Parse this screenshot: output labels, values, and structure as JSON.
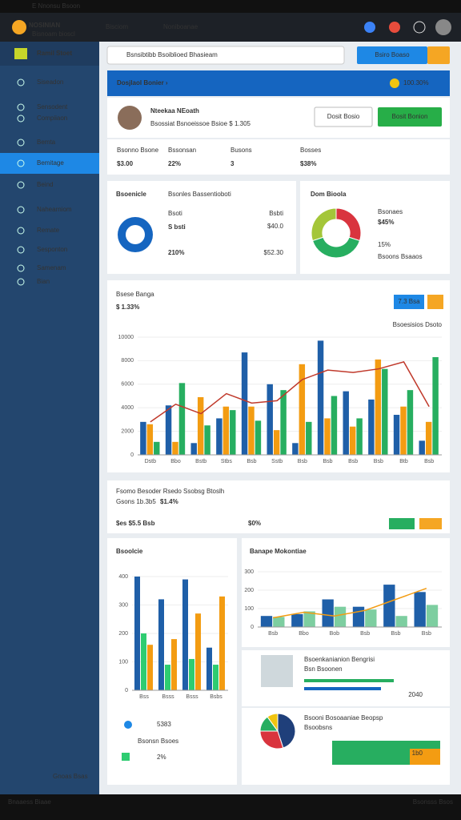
{
  "topbar": {
    "title": "E Nnonsu Bsoon"
  },
  "header": {
    "logo": "NOSINIAN",
    "tagline": "Bisnoam bioscl",
    "nav": [
      "Bisciom",
      "Noniboanae"
    ]
  },
  "sidebar": {
    "title": "Ramil Stoet",
    "items": [
      "Siseadon",
      "Sensodent",
      "Compiiaon",
      "Bemta",
      "Bemitage",
      "Beind",
      "Nahearniom",
      "Remate",
      "Sesponton",
      "Samenam",
      "Bian"
    ],
    "footer": "Gnoas Bsas"
  },
  "search": {
    "placeholder": "Bsnsibtibb Bsoiblioed Bhasieam",
    "button": "Bsiro Boaso"
  },
  "banner": {
    "title": "Dosjlaol Bonier ›",
    "value": "100.30%"
  },
  "profile": {
    "name": "Nteekaa NEoath",
    "subtitle": "Bsossiat Bsnoeissoe Bsioe $ 1.305",
    "button1": "Dosit Bosio",
    "button2": "Bosit Bonion"
  },
  "kpis": [
    {
      "label": "Bsonno Bsone",
      "value": "$3.00"
    },
    {
      "label": "Bssonsan",
      "value": "22%"
    },
    {
      "label": "Busons",
      "value": "3"
    },
    {
      "label": "Bosses",
      "value": "$38%"
    }
  ],
  "card1": {
    "title": "Bsoenicle",
    "subtitle": "Bsonles Bassentioboti",
    "label1": "Bsoti",
    "label2": "Bsbti",
    "value1": "S bsti",
    "value2": "$40.0",
    "value3": "210%",
    "value4": "$52.30"
  },
  "donut_card": {
    "label1": "$45%",
    "label2": "Bsonaes",
    "label3": "15%",
    "label4": "Bsoons Bsaaos"
  },
  "chart_extra": {
    "subtitle": "$ 1.33%",
    "button": "7.3 Bsa",
    "link": "Bsoesisios Dsoto"
  },
  "strip": {
    "title": "Fsomo Besoder Rsedo Ssobsg Btoslh",
    "sub": "Gsons 1b.3b5",
    "sub_value": "$1.4%",
    "left": "$es $5.5 Bsb",
    "right": "$0%"
  },
  "left_stats": {
    "value": "5383",
    "label": "Bsonsn Bsoes",
    "pct": "2%"
  },
  "list": [
    {
      "title": "Bsoenkanianion Bengrisi",
      "sub": "Bsn Bsoonen",
      "value": "2040"
    },
    {
      "title": "Bsooni Bosoaaniae Beopsp",
      "sub": "Bsoobsns",
      "value": "1b0"
    }
  ],
  "footer": {
    "left": "Bnaaess Biaae",
    "right": "Bsonsss Bsos"
  },
  "chart_data": [
    {
      "type": "bar",
      "title": "Bsese Banga",
      "categories": [
        "Dstb",
        "Bbo",
        "Bstb",
        "Stbs",
        "Bsb",
        "Sstb",
        "Bsb",
        "Bsb",
        "Bsb",
        "Bsb",
        "Btb",
        "Bsb"
      ],
      "series": [
        {
          "color": "#1f5fa8",
          "values": [
            2800,
            4200,
            1000,
            3100,
            8700,
            6000,
            1000,
            9700,
            5400,
            4700,
            3400,
            1200
          ]
        },
        {
          "color": "#f39c12",
          "values": [
            2600,
            1100,
            4900,
            4100,
            4100,
            2100,
            7700,
            3100,
            2400,
            8100,
            4100,
            2800
          ]
        },
        {
          "color": "#27ae60",
          "values": [
            1100,
            6100,
            2500,
            3800,
            2900,
            5500,
            2800,
            5000,
            3100,
            7300,
            5500,
            8300
          ]
        },
        {
          "type": "line",
          "color": "#c0392b",
          "values": [
            2800,
            4300,
            3500,
            5200,
            4400,
            4600,
            6400,
            7200,
            7000,
            7300,
            7900,
            4100
          ]
        }
      ],
      "ylim": [
        0,
        10000
      ],
      "yticks": [
        0,
        2000,
        4000,
        6000,
        8000,
        10000
      ]
    },
    {
      "type": "pie",
      "title": "Dom Bioola",
      "values": [
        30,
        40,
        30
      ],
      "colors": [
        "#d9343e",
        "#27ae60",
        "#a4c639"
      ]
    },
    {
      "type": "bar",
      "title": "Bsoolcie",
      "categories": [
        "Bss",
        "Bsss",
        "Bsss",
        "Bsbs"
      ],
      "series": [
        {
          "color": "#1f5fa8",
          "values": [
            400,
            320,
            390,
            150
          ]
        },
        {
          "color": "#2ecc71",
          "values": [
            200,
            90,
            110,
            90
          ]
        },
        {
          "color": "#f39c12",
          "values": [
            160,
            180,
            270,
            330
          ]
        }
      ],
      "ylim": [
        0,
        400
      ],
      "yticks": [
        0,
        100,
        200,
        300,
        400
      ]
    },
    {
      "type": "bar",
      "title": "Banape Mokontiae",
      "categories": [
        "Bsb",
        "Bbo",
        "Bob",
        "Bsb",
        "Bsb",
        "Bsb"
      ],
      "series": [
        {
          "color": "#1f5fa8",
          "values": [
            60,
            70,
            150,
            110,
            230,
            190
          ]
        },
        {
          "color": "#7dcea0",
          "values": [
            55,
            85,
            110,
            95,
            60,
            120
          ]
        },
        {
          "type": "line",
          "color": "#f39c12",
          "values": [
            50,
            80,
            60,
            90,
            150,
            210
          ]
        }
      ],
      "ylim": [
        0,
        300
      ],
      "yticks": [
        0,
        100,
        200,
        300
      ]
    },
    {
      "type": "pie",
      "title": "Bsooni",
      "values": [
        45,
        30,
        15,
        10
      ],
      "colors": [
        "#1f3f7a",
        "#d9343e",
        "#27ae60",
        "#f1c40f"
      ]
    }
  ]
}
